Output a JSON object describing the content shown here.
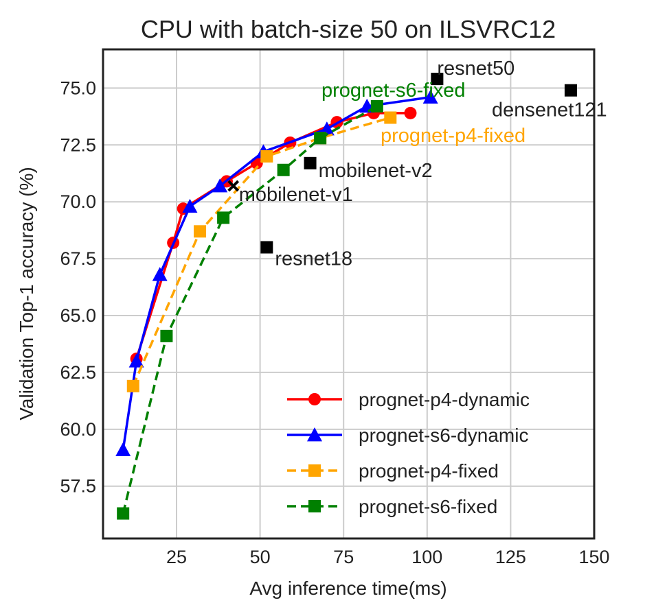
{
  "chart_data": {
    "type": "line",
    "title": "CPU with batch-size 50 on ILSVRC12",
    "xlabel": "Avg inference time(ms)",
    "ylabel": "Validation Top-1 accuracy (%)",
    "xlim": [
      3,
      150
    ],
    "ylim": [
      55.2,
      76.7
    ],
    "xticks": [
      25,
      50,
      75,
      100,
      125,
      150
    ],
    "yticks": [
      57.5,
      60.0,
      62.5,
      65.0,
      67.5,
      70.0,
      72.5,
      75.0
    ],
    "ytick_labels": [
      "57.5",
      "60.0",
      "62.5",
      "65.0",
      "67.5",
      "70.0",
      "72.5",
      "75.0"
    ],
    "xtick_labels": [
      "25",
      "50",
      "75",
      "100",
      "125",
      "150"
    ],
    "grid": true,
    "legend_position": "lower-right",
    "series": [
      {
        "name": "prognet-p4-dynamic",
        "color": "#ff0000",
        "marker": "circle",
        "dash": "solid",
        "x": [
          13,
          24,
          27,
          40,
          49,
          59,
          73,
          84,
          95
        ],
        "y": [
          63.1,
          68.2,
          69.7,
          70.9,
          71.7,
          72.6,
          73.5,
          73.9,
          73.9
        ]
      },
      {
        "name": "prognet-s6-dynamic",
        "color": "#0000ff",
        "marker": "triangle",
        "dash": "solid",
        "x": [
          9,
          13,
          20,
          29,
          38,
          51,
          70,
          82,
          101
        ],
        "y": [
          59.1,
          63.0,
          66.8,
          69.8,
          70.7,
          72.2,
          73.2,
          74.2,
          74.6
        ]
      },
      {
        "name": "prognet-p4-fixed",
        "color": "#ffa500",
        "marker": "square",
        "dash": "dashed",
        "x": [
          12,
          32,
          52,
          68,
          89
        ],
        "y": [
          61.9,
          68.7,
          72.0,
          72.8,
          73.7
        ]
      },
      {
        "name": "prognet-s6-fixed",
        "color": "#008000",
        "marker": "square",
        "dash": "dashed",
        "x": [
          9,
          22,
          39,
          57,
          68,
          85
        ],
        "y": [
          56.3,
          64.1,
          69.3,
          71.4,
          72.8,
          74.2
        ]
      }
    ],
    "baselines": [
      {
        "label": "resnet50",
        "x": 103,
        "y": 75.4,
        "marker": "square"
      },
      {
        "label": "densenet121",
        "x": 143,
        "y": 74.9,
        "marker": "square"
      },
      {
        "label": "mobilenet-v2",
        "x": 65,
        "y": 71.7,
        "marker": "square"
      },
      {
        "label": "mobilenet-v1",
        "x": 42,
        "y": 70.7,
        "marker": "x"
      },
      {
        "label": "resnet18",
        "x": 52,
        "y": 68.0,
        "marker": "square"
      }
    ],
    "annotations": [
      {
        "text": "prognet-s6-fixed",
        "color": "#008000"
      },
      {
        "text": "prognet-p4-fixed",
        "color": "#ffa500"
      }
    ]
  }
}
